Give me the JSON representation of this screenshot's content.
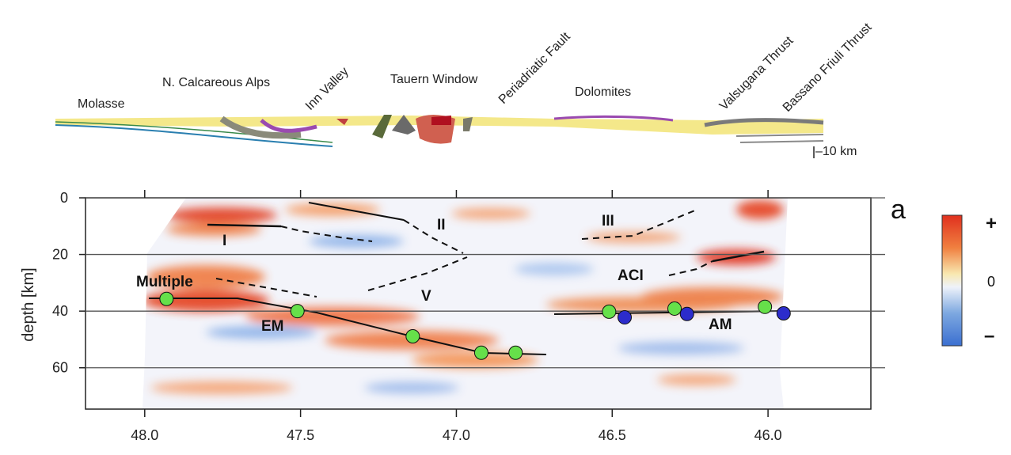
{
  "chart_data": {
    "type": "scatter",
    "y_label": "depth [km]",
    "xlim": [
      48.19,
      45.67
    ],
    "ylim": [
      0,
      74.6
    ],
    "y_inverted": true,
    "xticks": [
      {
        "value": 48,
        "label": "48.0"
      },
      {
        "value": 47.5,
        "label": "47.5"
      },
      {
        "value": 47,
        "label": "47.0"
      },
      {
        "value": 46.5,
        "label": "46.5"
      },
      {
        "value": 46,
        "label": "46.0"
      }
    ],
    "yticks": [
      0,
      20,
      40,
      60
    ],
    "grid": true,
    "series": [
      {
        "color": "#66e04a",
        "x": [
          47.93,
          47.51,
          47.14,
          46.92,
          46.81,
          46.51,
          46.3,
          46.01
        ],
        "values": [
          35.7,
          40,
          48.9,
          54.7,
          54.7,
          40.2,
          39.1,
          38.5
        ]
      },
      {
        "color": "#2c2ccc",
        "x": [
          46.46,
          46.26,
          45.95
        ],
        "values": [
          42.2,
          41,
          40.8
        ]
      }
    ],
    "annotations": [
      "I",
      "II",
      "III",
      "Multiple",
      "V",
      "EM",
      "ACI",
      "AM"
    ],
    "panel_label": "a",
    "colorbar": {
      "labels": [
        "+",
        "0",
        "–"
      ]
    }
  },
  "cross_section": {
    "labels": [
      "Molasse",
      "N. Calcareous Alps",
      "Inn Valley",
      "Tauern Window",
      "Periadriatic Fault",
      "Dolomites",
      "Valsugana Thrust",
      "Bassano Friuli Thrust",
      "–10 km"
    ]
  }
}
